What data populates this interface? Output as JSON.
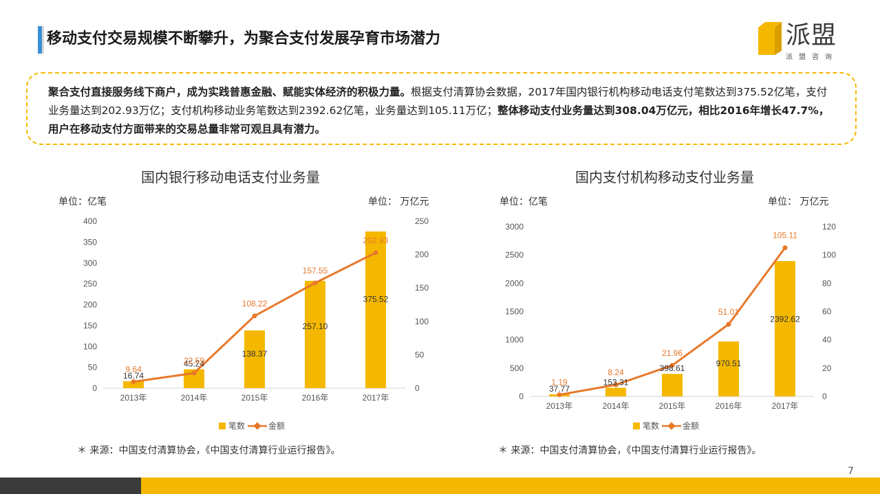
{
  "page": {
    "title": "移动支付交易规模不断攀升，为聚合支付发展孕育市场潜力",
    "page_number": "7",
    "logo_text": "派盟",
    "logo_sub": "派盟咨询",
    "accent_blue": "#3a8fd6",
    "accent_yellow": "#f5b800",
    "line_color": "#e8782a"
  },
  "callout": {
    "bold1": "聚合支付直接服务线下商户，成为实践普惠金融、赋能实体经济的积极力量。",
    "normal1": "根据支付清算协会数据，2017年国内银行机构移动电话支付笔数达到375.52亿笔，支付业务量达到202.93万亿；支付机构移动业务笔数达到2392.62亿笔，业务量达到105.11万亿；",
    "bold2": "整体移动支付业务量达到308.04万亿元，相比2016年增长47.7%，用户在移动支付方面带来的交易总量非常可观且具有潜力。"
  },
  "left": {
    "unit_left": "单位：亿笔",
    "unit_right": "单位： 万亿元",
    "source": "＊ 来源：中国支付清算协会，《中国支付清算行业运行报告》。"
  },
  "right": {
    "unit_left": "单位：亿笔",
    "unit_right": "单位： 万亿元",
    "source": "＊ 来源：中国支付清算协会，《中国支付清算行业运行报告》。"
  },
  "chart_data": [
    {
      "type": "bar",
      "title": "国内银行移动电话支付业务量",
      "categories": [
        "2013年",
        "2014年",
        "2015年",
        "2016年",
        "2017年"
      ],
      "series": [
        {
          "name": "笔数",
          "kind": "bar",
          "axis": "left",
          "values": [
            16.74,
            45.24,
            138.37,
            257.1,
            375.52
          ],
          "labels": [
            "16.74",
            "45.24",
            "138.37",
            "257.10",
            "375.52"
          ]
        },
        {
          "name": "金额",
          "kind": "line",
          "axis": "right",
          "values": [
            9.64,
            22.59,
            108.22,
            157.55,
            202.93
          ],
          "labels": [
            "9.64",
            "22.59",
            "108.22",
            "157.55",
            "202.93"
          ]
        }
      ],
      "ylim_left": [
        0,
        400
      ],
      "yticks_left": [
        0,
        50,
        100,
        150,
        200,
        250,
        300,
        350,
        400
      ],
      "ylim_right": [
        0,
        250
      ],
      "yticks_right": [
        0,
        50,
        100,
        150,
        200,
        250
      ],
      "legend": "bottom"
    },
    {
      "type": "bar",
      "title": "国内支付机构移动支付业务量",
      "categories": [
        "2013年",
        "2014年",
        "2015年",
        "2016年",
        "2017年"
      ],
      "series": [
        {
          "name": "笔数",
          "kind": "bar",
          "axis": "left",
          "values": [
            37.77,
            153.31,
            398.61,
            970.51,
            2392.62
          ],
          "labels": [
            "37.77",
            "153.31",
            "398.61",
            "970.51",
            "2392.62"
          ]
        },
        {
          "name": "金额",
          "kind": "line",
          "axis": "right",
          "values": [
            1.19,
            8.24,
            21.96,
            51.01,
            105.11
          ],
          "labels": [
            "1.19",
            "8.24",
            "21.96",
            "51.01",
            "105.11"
          ]
        }
      ],
      "ylim_left": [
        0,
        3000
      ],
      "yticks_left": [
        0,
        500,
        1000,
        1500,
        2000,
        2500,
        3000
      ],
      "ylim_right": [
        0,
        120
      ],
      "yticks_right": [
        0,
        20,
        40,
        60,
        80,
        100,
        120
      ],
      "legend": "bottom"
    }
  ]
}
